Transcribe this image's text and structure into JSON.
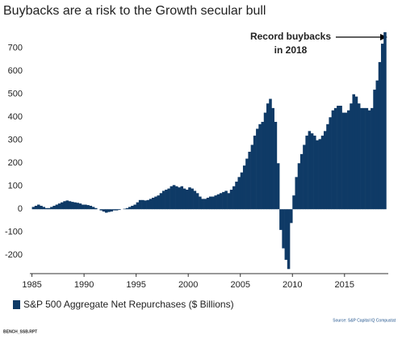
{
  "chart_data": {
    "type": "bar",
    "title": "Buybacks are a risk to the Growth secular bull",
    "annotation": [
      "Record buybacks",
      "in 2018"
    ],
    "source": "Source: S&P Capital IQ Compustat",
    "footer": "BENCH_SSB.RPT",
    "series": [
      {
        "name": "S&P 500 Aggregate Net Repurchases ($ Billions)",
        "color": "#0f3a66",
        "values": [
          10,
          15,
          20,
          15,
          10,
          5,
          5,
          10,
          15,
          20,
          25,
          30,
          35,
          38,
          35,
          32,
          30,
          28,
          25,
          20,
          20,
          18,
          15,
          10,
          5,
          0,
          -5,
          -10,
          -15,
          -12,
          -10,
          -5,
          -5,
          -3,
          0,
          2,
          5,
          10,
          15,
          20,
          30,
          40,
          40,
          38,
          40,
          45,
          50,
          55,
          60,
          70,
          80,
          85,
          90,
          100,
          105,
          100,
          95,
          100,
          90,
          85,
          95,
          90,
          80,
          70,
          55,
          45,
          45,
          50,
          55,
          55,
          60,
          65,
          70,
          75,
          80,
          70,
          85,
          100,
          120,
          140,
          160,
          190,
          220,
          250,
          280,
          320,
          350,
          370,
          380,
          420,
          460,
          480,
          440,
          380,
          200,
          -90,
          -170,
          -220,
          -260,
          -60,
          60,
          140,
          200,
          240,
          280,
          320,
          340,
          330,
          320,
          300,
          305,
          320,
          340,
          370,
          400,
          430,
          440,
          450,
          450,
          420,
          420,
          430,
          460,
          500,
          490,
          460,
          440,
          440,
          440,
          430,
          440,
          520,
          560,
          640,
          720,
          770
        ]
      }
    ],
    "x": [
      1985,
      1985.25,
      1985.5,
      1985.75,
      1986,
      1986.25,
      1986.5,
      1986.75,
      1987,
      1987.25,
      1987.5,
      1987.75,
      1988,
      1988.25,
      1988.5,
      1988.75,
      1989,
      1989.25,
      1989.5,
      1989.75,
      1990,
      1990.25,
      1990.5,
      1990.75,
      1991,
      1991.25,
      1991.5,
      1991.75,
      1992,
      1992.25,
      1992.5,
      1992.75,
      1993,
      1993.25,
      1993.5,
      1993.75,
      1994,
      1994.25,
      1994.5,
      1994.75,
      1995,
      1995.25,
      1995.5,
      1995.75,
      1996,
      1996.25,
      1996.5,
      1996.75,
      1997,
      1997.25,
      1997.5,
      1997.75,
      1998,
      1998.25,
      1998.5,
      1998.75,
      1999,
      1999.25,
      1999.5,
      1999.75,
      2000,
      2000.25,
      2000.5,
      2000.75,
      2001,
      2001.25,
      2001.5,
      2001.75,
      2002,
      2002.25,
      2002.5,
      2002.75,
      2003,
      2003.25,
      2003.5,
      2003.75,
      2004,
      2004.25,
      2004.5,
      2004.75,
      2005,
      2005.25,
      2005.5,
      2005.75,
      2006,
      2006.25,
      2006.5,
      2006.75,
      2007,
      2007.25,
      2007.5,
      2007.75,
      2008,
      2008.25,
      2008.5,
      2008.75,
      2009,
      2009.25,
      2009.5,
      2009.75,
      2010,
      2010.25,
      2010.5,
      2010.75,
      2011,
      2011.25,
      2011.5,
      2011.75,
      2012,
      2012.25,
      2012.5,
      2012.75,
      2013,
      2013.25,
      2013.5,
      2013.75,
      2014,
      2014.25,
      2014.5,
      2014.75,
      2015,
      2015.25,
      2015.5,
      2015.75,
      2016,
      2016.25,
      2016.5,
      2016.75,
      2017,
      2017.25,
      2017.5,
      2017.75,
      2018,
      2018.25,
      2018.5,
      2018.75
    ],
    "xlim": [
      1984.8,
      2019.2
    ],
    "xticks": [
      1985,
      1990,
      1995,
      2000,
      2005,
      2010,
      2015
    ],
    "ylim": [
      -280,
      780
    ],
    "yticks": [
      -200,
      -100,
      0,
      100,
      200,
      300,
      400,
      500,
      600,
      700
    ],
    "grid": false
  }
}
